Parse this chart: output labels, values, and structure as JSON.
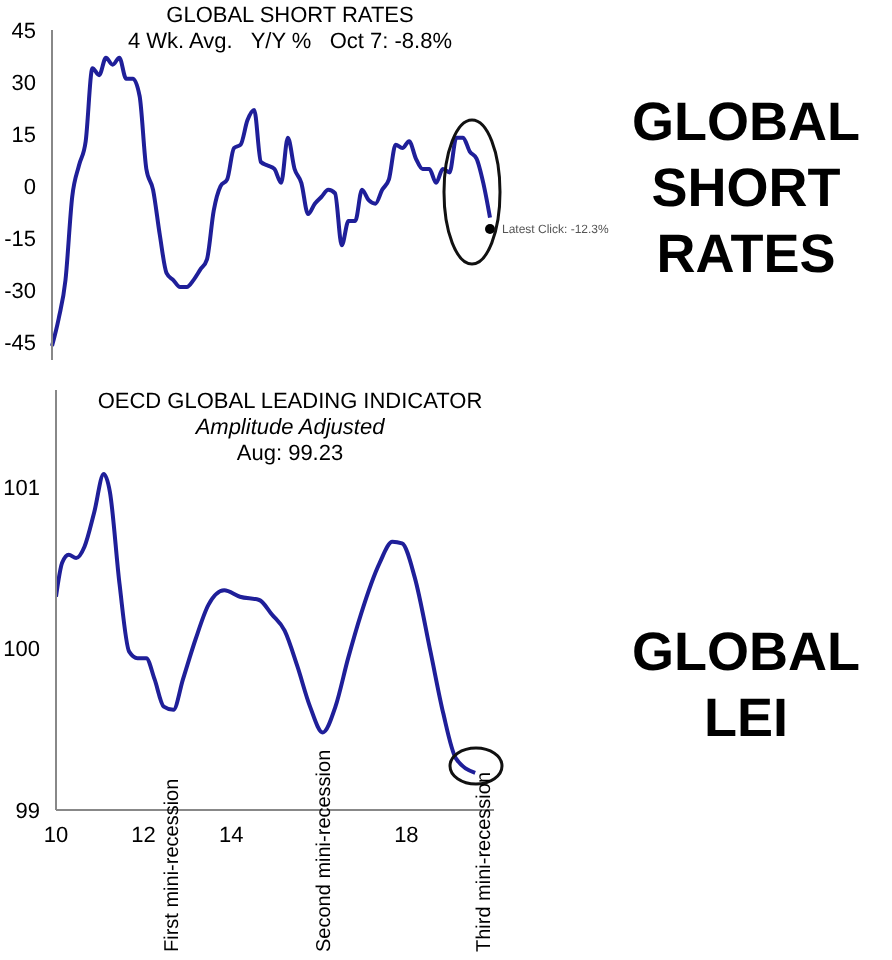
{
  "chart_data": [
    {
      "type": "line",
      "title": "GLOBAL SHORT RATES",
      "subtitle": "4 Wk. Avg.   Y/Y %   Oct 7: -8.8%",
      "tick_labels": "y",
      "line_style": "solid",
      "categories": [
        null,
        null,
        null,
        null,
        null,
        null,
        null,
        null,
        null,
        null,
        null,
        null,
        null,
        null,
        null,
        null,
        null,
        null,
        null,
        null,
        null,
        null,
        null,
        null,
        null,
        null,
        null,
        null,
        null,
        null,
        null,
        null,
        null,
        null,
        null,
        null,
        null,
        null,
        null,
        null,
        null,
        null,
        null,
        null,
        null,
        null,
        null,
        null,
        null,
        null,
        null,
        null,
        null,
        null,
        null,
        null,
        null,
        null,
        null,
        null,
        null,
        null,
        null,
        null,
        null,
        null
      ],
      "series": [
        {
          "color": "#1f1f99",
          "marker": "none",
          "values": [
            -46,
            -38,
            -27,
            -3,
            6,
            13,
            34,
            32,
            37,
            35,
            37,
            31,
            31,
            26,
            5,
            -1,
            -14,
            -25,
            -27,
            -29,
            -29,
            -27,
            -24,
            -21,
            -7,
            0,
            2,
            11,
            12,
            19,
            22,
            7,
            6,
            5,
            1,
            14,
            5,
            1,
            -8,
            -5,
            -3,
            -1,
            -2,
            -17,
            -10,
            -10,
            -1,
            -4,
            -5,
            -1,
            2,
            12,
            11,
            13,
            8,
            5,
            5,
            1,
            5,
            4,
            14,
            14,
            10,
            8,
            1,
            -9
          ]
        },
        {
          "type": "scatter",
          "color": "#000000",
          "marker": "circle",
          "values": [
            null,
            null,
            null,
            null,
            null,
            null,
            null,
            null,
            null,
            null,
            null,
            null,
            null,
            null,
            null,
            null,
            null,
            null,
            null,
            null,
            null,
            null,
            null,
            null,
            null,
            null,
            null,
            null,
            null,
            null,
            null,
            null,
            null,
            null,
            null,
            null,
            null,
            null,
            null,
            null,
            null,
            null,
            null,
            null,
            null,
            null,
            null,
            null,
            null,
            null,
            null,
            null,
            null,
            null,
            null,
            null,
            null,
            null,
            null,
            null,
            null,
            null,
            null,
            null,
            null,
            -12.3
          ]
        }
      ],
      "ylim": [
        -50,
        45
      ],
      "yticks": [
        -45,
        -30,
        -15,
        0,
        15,
        30,
        45
      ],
      "annotations": [
        "Latest Click: -12.3%",
        "GLOBAL SHORT RATES"
      ]
    },
    {
      "type": "line",
      "title": "OECD GLOBAL LEADING INDICATOR",
      "subtitle": "Amplitude Adjusted",
      "marker": "none",
      "line_style": "solid",
      "x": [
        10.0,
        10.14,
        10.29,
        10.46,
        10.65,
        10.87,
        11.09,
        11.23,
        11.45,
        11.67,
        11.86,
        12.06,
        12.25,
        12.46,
        12.68,
        12.9,
        13.19,
        13.48,
        13.84,
        14.2,
        14.64,
        14.93,
        15.22,
        15.51,
        15.8,
        16.09,
        16.38,
        16.67,
        16.96,
        17.39,
        17.68,
        17.9,
        18.19,
        18.55,
        18.84,
        19.13,
        19.57
      ],
      "series": [
        {
          "color": "#1f1f99",
          "values": [
            100.32,
            100.53,
            100.58,
            100.56,
            100.63,
            100.84,
            101.08,
            100.97,
            100.4,
            99.98,
            99.94,
            99.94,
            99.81,
            99.64,
            99.62,
            99.81,
            100.06,
            100.27,
            100.36,
            100.32,
            100.3,
            100.21,
            100.11,
            99.89,
            99.64,
            99.48,
            99.64,
            99.94,
            100.21,
            100.53,
            100.66,
            100.65,
            100.44,
            99.98,
            99.6,
            99.32,
            99.23
          ]
        }
      ],
      "xlim": [
        10,
        20
      ],
      "xticks": [
        10,
        12,
        14,
        18
      ],
      "ylim": [
        99,
        101.6
      ],
      "yticks": [
        99,
        100,
        101
      ],
      "annotations": [
        "First mini-recession",
        "Second mini-recession",
        "Third mini-recession",
        "Aug: 99.23",
        "GLOBAL LEI"
      ]
    }
  ]
}
